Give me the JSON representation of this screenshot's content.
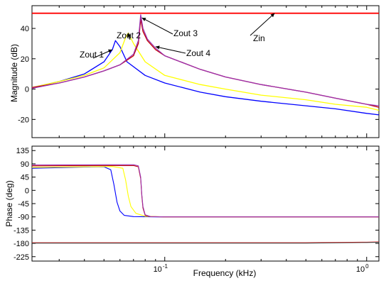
{
  "chart_data": [
    {
      "type": "line",
      "x_scale": "log",
      "xlim": [
        0.022,
        1.15
      ],
      "ylim": [
        -32,
        55
      ],
      "ylabel": "Magnitude (dB)",
      "xlabel": "",
      "yticks": [
        -20,
        0,
        20,
        40
      ],
      "ytick_labels": [
        "-20",
        "0",
        "20",
        "40"
      ],
      "xticks": [
        0.1,
        1
      ],
      "xtick_labels": [],
      "grid": false,
      "colors": {
        "Zin": "#ff0000",
        "Zout 1": "#0000ff",
        "Zout 2": "#ffff00",
        "Zout 3": "#c00000",
        "Zout 4": "#9b30b0"
      },
      "series": [
        {
          "name": "Zin",
          "color": "#ff0000",
          "x": [
            0.022,
            1.15
          ],
          "y": [
            50,
            50
          ]
        },
        {
          "name": "Zout 1",
          "color": "#0000ff",
          "x": [
            0.022,
            0.03,
            0.04,
            0.05,
            0.055,
            0.057,
            0.06,
            0.065,
            0.08,
            0.1,
            0.15,
            0.2,
            0.3,
            0.5,
            0.7,
            1.0,
            1.15
          ],
          "y": [
            1,
            5,
            10,
            18,
            26,
            32,
            28,
            18,
            9,
            4,
            -2,
            -5,
            -8,
            -11,
            -13,
            -16,
            -17
          ]
        },
        {
          "name": "Zout 2",
          "color": "#ffff00",
          "x": [
            0.022,
            0.03,
            0.04,
            0.05,
            0.06,
            0.064,
            0.066,
            0.07,
            0.08,
            0.1,
            0.15,
            0.2,
            0.3,
            0.5,
            0.7,
            1.0,
            1.15
          ],
          "y": [
            1,
            5,
            9,
            14,
            24,
            34,
            37,
            30,
            18,
            9,
            3,
            0,
            -4,
            -7,
            -10,
            -12,
            -14
          ]
        },
        {
          "name": "Zout 3",
          "color": "#c00000",
          "x": [
            0.022,
            0.03,
            0.04,
            0.05,
            0.06,
            0.07,
            0.074,
            0.076,
            0.078,
            0.082,
            0.09,
            0.1,
            0.15,
            0.2,
            0.3,
            0.5,
            0.7,
            1.0,
            1.15
          ],
          "y": [
            1,
            4,
            8,
            12,
            16,
            22,
            30,
            46,
            38,
            32,
            26,
            22,
            13,
            8,
            3,
            -2,
            -6,
            -10,
            -12
          ]
        },
        {
          "name": "Zout 4",
          "color": "#9b30b0",
          "x": [
            0.022,
            0.03,
            0.04,
            0.05,
            0.06,
            0.07,
            0.074,
            0.076,
            0.078,
            0.082,
            0.09,
            0.1,
            0.15,
            0.2,
            0.3,
            0.5,
            0.7,
            1.0,
            1.15
          ],
          "y": [
            0.5,
            4,
            8,
            12,
            16,
            23,
            32,
            49,
            40,
            33,
            27,
            22,
            13,
            8,
            3,
            -2,
            -6,
            -10,
            -11
          ]
        }
      ],
      "annotations": [
        {
          "text": "Zout 1",
          "target": [
            0.055,
            26
          ]
        },
        {
          "text": "Zout 2",
          "target": [
            0.066,
            37
          ]
        },
        {
          "text": "Zout 3",
          "target": [
            0.077,
            47
          ]
        },
        {
          "text": "Zout 4",
          "target": [
            0.09,
            28
          ]
        },
        {
          "text": "Zin",
          "target": [
            0.35,
            50
          ]
        }
      ]
    },
    {
      "type": "line",
      "x_scale": "log",
      "xlim": [
        0.022,
        1.15
      ],
      "ylim": [
        -240,
        150
      ],
      "ylabel": "Phase (deg)",
      "xlabel": "Frequency  (kHz)",
      "yticks": [
        -225,
        -180,
        -135,
        -90,
        -45,
        0,
        45,
        90,
        135
      ],
      "ytick_labels": [
        "-225",
        "-180",
        "-135",
        "-90",
        "-45",
        "0",
        "45",
        "90",
        "135"
      ],
      "xticks": [
        0.1,
        1
      ],
      "xtick_labels": [
        "10^-1",
        "10^0"
      ],
      "grid": false,
      "series": [
        {
          "name": "Zin",
          "color": "#ff0000",
          "x": [
            0.022,
            0.2,
            0.5,
            1.0,
            1.15
          ],
          "y": [
            -178,
            -178,
            -178,
            -176,
            -175
          ]
        },
        {
          "name": "Zin-trace",
          "color": "#444444",
          "x": [
            0.022,
            0.2,
            0.5,
            1.0,
            1.15
          ],
          "y": [
            -179,
            -179,
            -179,
            -177,
            -176
          ]
        },
        {
          "name": "Zout 1",
          "color": "#0000ff",
          "x": [
            0.022,
            0.04,
            0.05,
            0.054,
            0.056,
            0.058,
            0.06,
            0.063,
            0.07,
            0.09,
            0.2,
            1.15
          ],
          "y": [
            75,
            79,
            80,
            70,
            20,
            -40,
            -70,
            -85,
            -89,
            -90,
            -90,
            -90
          ]
        },
        {
          "name": "Zout 2",
          "color": "#ffff00",
          "x": [
            0.022,
            0.04,
            0.055,
            0.062,
            0.064,
            0.066,
            0.068,
            0.072,
            0.08,
            0.1,
            0.2,
            1.15
          ],
          "y": [
            78,
            80,
            81,
            75,
            35,
            -20,
            -55,
            -78,
            -88,
            -90,
            -90,
            -90
          ]
        },
        {
          "name": "Zout 3",
          "color": "#c00000",
          "x": [
            0.022,
            0.05,
            0.07,
            0.074,
            0.076,
            0.077,
            0.078,
            0.08,
            0.085,
            0.1,
            0.2,
            1.15
          ],
          "y": [
            83,
            84,
            84,
            80,
            40,
            -20,
            -60,
            -85,
            -89,
            -90,
            -90,
            -90
          ]
        },
        {
          "name": "Zout 4",
          "color": "#9b30b0",
          "x": [
            0.022,
            0.05,
            0.07,
            0.074,
            0.076,
            0.077,
            0.078,
            0.08,
            0.085,
            0.1,
            0.2,
            1.15
          ],
          "y": [
            86,
            87,
            87,
            83,
            45,
            -15,
            -55,
            -83,
            -89,
            -90,
            -90,
            -90
          ]
        }
      ]
    }
  ],
  "tick_math": {
    "base": "10",
    "exp_0": "-1",
    "exp_1": "0"
  }
}
